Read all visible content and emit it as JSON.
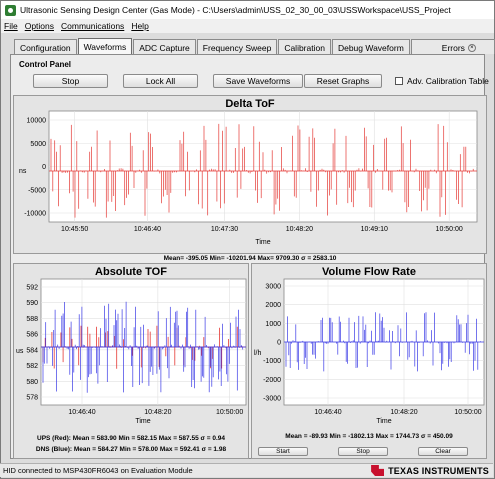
{
  "window": {
    "title": "Ultrasonic Sensing Design Center (Gas Mode) - C:\\Users\\admin\\USS_02_30_00_03\\USSWorkspace\\USS_Project"
  },
  "menu": [
    {
      "label": "File"
    },
    {
      "label": "Options"
    },
    {
      "label": "Communications"
    },
    {
      "label": "Help"
    }
  ],
  "tabs": [
    {
      "label": "Configuration"
    },
    {
      "label": "Waveforms"
    },
    {
      "label": "ADC Capture"
    },
    {
      "label": "Frequency Sweep"
    },
    {
      "label": "Calibration"
    },
    {
      "label": "Debug Waveform"
    },
    {
      "label": "Errors"
    }
  ],
  "control_panel": {
    "label": "Control Panel",
    "stop": "Stop",
    "lock_all": "Lock All",
    "save_waveforms": "Save Waveforms",
    "reset_graphs": "Reset Graphs",
    "adv_calibration": "Adv. Calibration Table"
  },
  "delta_tof": {
    "title": "Delta ToF",
    "ylabel": "ns",
    "xlabel": "Time",
    "y_ticks": [
      "10000",
      "5000",
      "0",
      "-5000",
      "-10000"
    ],
    "x_ticks": [
      "10:45:50",
      "10:46:40",
      "10:47:30",
      "10:48:20",
      "10:49:10",
      "10:50:00"
    ],
    "stats": "Mean= -395.05 Min= -10201.94 Max= 9709.30 σ = 2583.10"
  },
  "absolute_tof": {
    "title": "Absolute TOF",
    "ylabel": "us",
    "xlabel": "Time",
    "y_ticks": [
      "592",
      "590",
      "588",
      "586",
      "584",
      "582",
      "580",
      "578"
    ],
    "x_ticks": [
      "10:46:40",
      "10:48:20",
      "10:50:00"
    ],
    "ups": "UPS (Red): Mean = 583.90 Min = 582.15 Max = 587.55 σ = 0.94",
    "dns": "DNS (Blue): Mean = 584.27 Min = 578.00 Max = 592.41 σ = 1.98"
  },
  "volume_flow": {
    "title": "Volume Flow Rate",
    "ylabel": "l/h",
    "xlabel": "Time",
    "y_ticks": [
      "3000",
      "2000",
      "1000",
      "0",
      "-1000",
      "-2000",
      "-3000"
    ],
    "x_ticks": [
      "10:46:40",
      "10:48:20",
      "10:50:00"
    ],
    "stats": "Mean = -89.93 Min = -1802.13 Max = 1744.73 σ = 450.09",
    "start": "Start",
    "stop": "Stop",
    "clear": "Clear"
  },
  "status": {
    "text": "HID connected to MSP430FR6043 on Evaluation Module",
    "brand": "TEXAS INSTRUMENTS"
  },
  "colors": {
    "red": "#e53935",
    "blue": "#3a3ae6",
    "accent": "#c8102e"
  }
}
